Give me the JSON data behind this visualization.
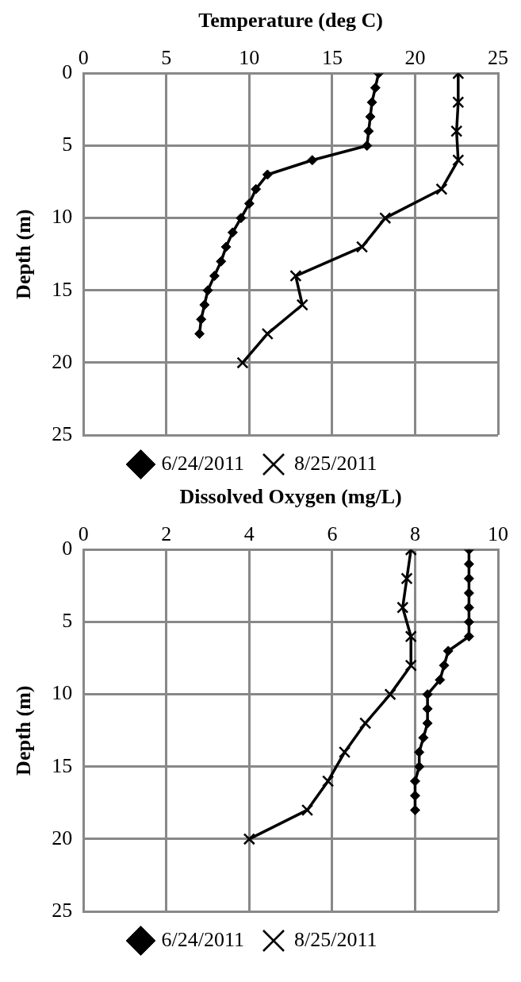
{
  "chart_data": [
    {
      "type": "line",
      "title": "Temperature (deg C)",
      "ylabel": "Depth (m)",
      "xlim": [
        0,
        25
      ],
      "xticks": [
        0,
        5,
        10,
        15,
        20,
        25
      ],
      "ylim": [
        25,
        0
      ],
      "yticks": [
        0,
        5,
        10,
        15,
        20,
        25
      ],
      "grid": true,
      "legend": "bottom",
      "series": [
        {
          "name": "6/24/2011",
          "color": "#000000",
          "marker": "diamond",
          "x": [
            17.8,
            17.6,
            17.4,
            17.3,
            17.2,
            17.1,
            13.8,
            11.1,
            10.4,
            10.0,
            9.5,
            9.0,
            8.6,
            8.3,
            7.9,
            7.5,
            7.3,
            7.1,
            7.0
          ],
          "values": [
            0,
            1,
            2,
            3,
            4,
            5,
            6,
            7,
            8,
            9,
            10,
            11,
            12,
            13,
            14,
            15,
            16,
            17,
            18
          ]
        },
        {
          "name": "8/25/2011",
          "color": "#000000",
          "marker": "cross",
          "x": [
            22.6,
            22.6,
            22.5,
            22.6,
            21.6,
            18.2,
            16.8,
            12.8,
            13.2,
            11.1,
            9.6
          ],
          "values": [
            0,
            2,
            4,
            6,
            8,
            10,
            12,
            14,
            16,
            18,
            20
          ]
        }
      ]
    },
    {
      "type": "line",
      "title": "Dissolved Oxygen (mg/L)",
      "ylabel": "Depth (m)",
      "xlim": [
        0,
        10
      ],
      "xticks": [
        0,
        2,
        4,
        6,
        8,
        10
      ],
      "ylim": [
        25,
        0
      ],
      "yticks": [
        0,
        5,
        10,
        15,
        20,
        25
      ],
      "grid": true,
      "legend": "bottom",
      "series": [
        {
          "name": "6/24/2011",
          "color": "#000000",
          "marker": "diamond",
          "x": [
            9.3,
            9.3,
            9.3,
            9.3,
            9.3,
            9.3,
            9.3,
            8.8,
            8.7,
            8.6,
            8.3,
            8.3,
            8.3,
            8.2,
            8.1,
            8.1,
            8.0,
            8.0,
            8.0
          ],
          "values": [
            0,
            1,
            2,
            3,
            4,
            5,
            6,
            7,
            8,
            9,
            10,
            11,
            12,
            13,
            14,
            15,
            16,
            17,
            18
          ]
        },
        {
          "name": "8/25/2011",
          "color": "#000000",
          "marker": "cross",
          "x": [
            7.9,
            7.8,
            7.7,
            7.9,
            7.9,
            7.4,
            6.8,
            6.3,
            5.9,
            5.4,
            4.0
          ],
          "values": [
            0,
            2,
            4,
            6,
            8,
            10,
            12,
            14,
            16,
            18,
            20
          ]
        }
      ]
    }
  ]
}
